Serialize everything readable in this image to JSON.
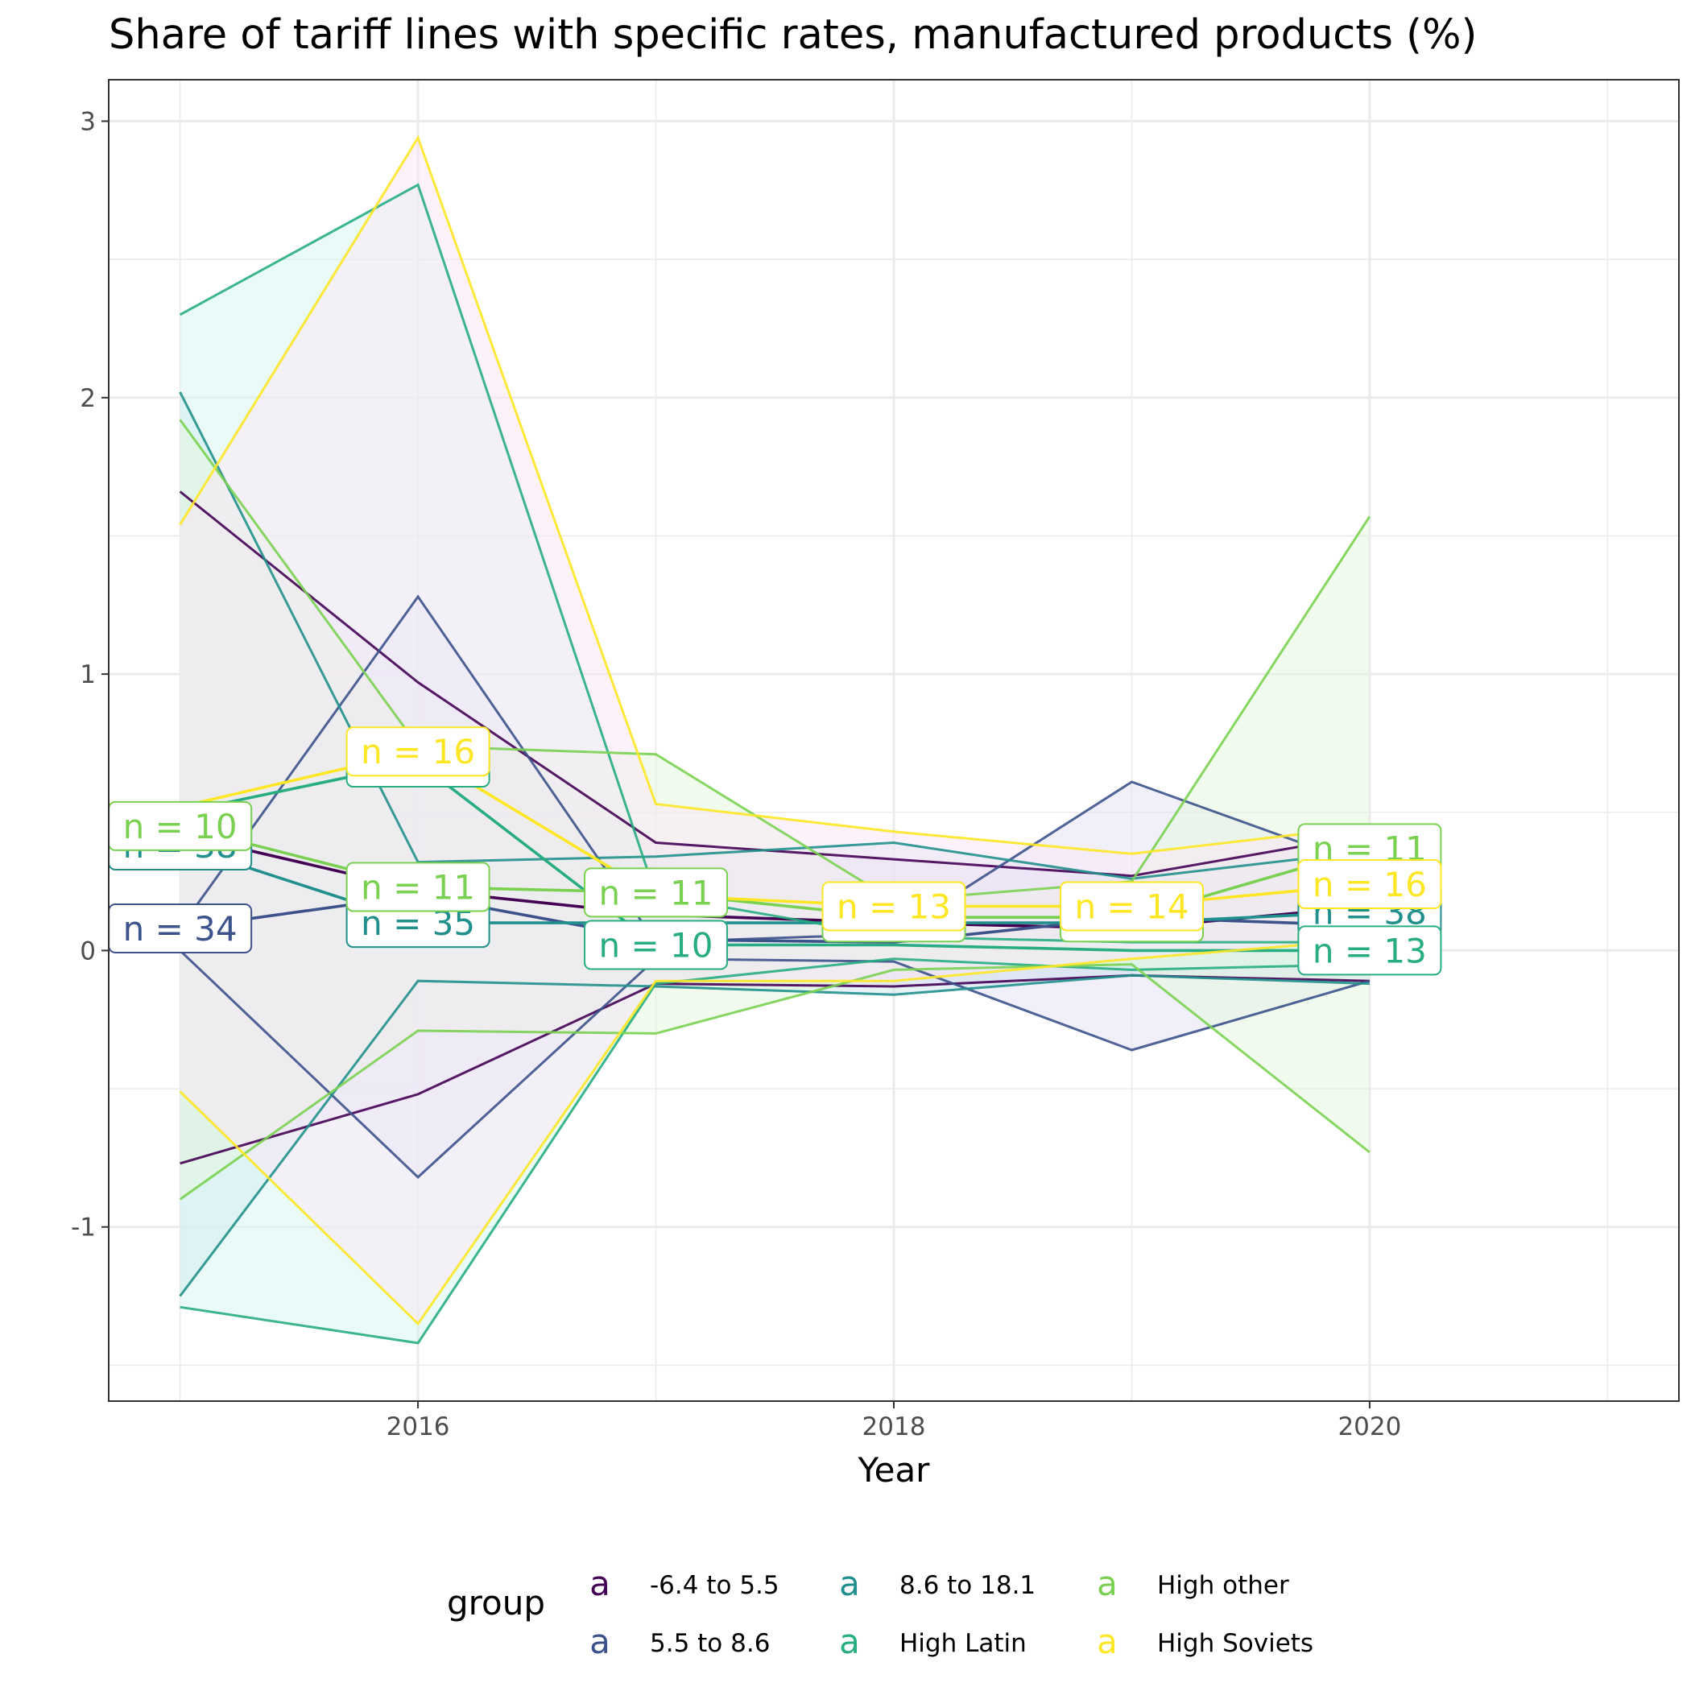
{
  "chart_data": {
    "type": "line",
    "title": "Share of tariff lines with specific rates, manufactured products (%)",
    "xlabel": "Year",
    "ylabel": "",
    "xlim": [
      2014.7,
      2021.3
    ],
    "ylim": [
      -1.63,
      3.15
    ],
    "x_ticks": [
      2016,
      2018,
      2020
    ],
    "y_ticks": [
      -1,
      0,
      1,
      2,
      3
    ],
    "grid": true,
    "legend": {
      "title": "group",
      "position": "bottom",
      "key_glyph": "a",
      "entries": [
        "-6.4 to 5.5",
        "5.5 to 8.6",
        "8.6 to 18.1",
        "High Latin",
        "High other",
        "High Soviets"
      ]
    },
    "series": [
      {
        "name": "-6.4 to 5.5",
        "color": "#440154",
        "fill": "#e9d6f5",
        "x": [
          2015,
          2016,
          2017,
          2018,
          2019,
          2020
        ],
        "mean": [
          0.42,
          0.22,
          0.13,
          0.1,
          0.08,
          0.16
        ],
        "upper": [
          1.66,
          0.97,
          0.39,
          0.33,
          0.27,
          0.42
        ],
        "lower": [
          -0.77,
          -0.52,
          -0.12,
          -0.13,
          -0.09,
          -0.11
        ],
        "n": [
          null,
          null,
          null,
          null,
          null,
          null
        ]
      },
      {
        "name": "5.5 to 8.6",
        "color": "#3b528b",
        "fill": "#e3e2f5",
        "x": [
          2015,
          2016,
          2017,
          2018,
          2019,
          2020
        ],
        "mean": [
          0.08,
          0.2,
          0.04,
          0.03,
          0.12,
          0.09
        ],
        "upper": [
          0.08,
          1.28,
          0.03,
          0.06,
          0.61,
          0.3
        ],
        "lower": [
          0.0,
          -0.82,
          -0.03,
          -0.04,
          -0.36,
          -0.11
        ],
        "n": [
          34,
          null,
          null,
          null,
          null,
          null
        ]
      },
      {
        "name": "8.6 to 18.1",
        "color": "#21908c",
        "fill": "#cfe6f0",
        "x": [
          2015,
          2016,
          2017,
          2018,
          2019,
          2020
        ],
        "mean": [
          0.38,
          0.1,
          0.1,
          0.1,
          0.1,
          0.14
        ],
        "upper": [
          2.02,
          0.32,
          0.34,
          0.39,
          0.26,
          0.36
        ],
        "lower": [
          -1.25,
          -0.11,
          -0.13,
          -0.16,
          -0.09,
          -0.12
        ],
        "n": [
          38,
          35,
          null,
          null,
          null,
          38
        ]
      },
      {
        "name": "High Latin",
        "color": "#27ad81",
        "fill": "#d6f5f2",
        "x": [
          2015,
          2016,
          2017,
          2018,
          2019,
          2020
        ],
        "mean": [
          0.5,
          0.68,
          0.02,
          0.02,
          0.0,
          0.0
        ],
        "upper": [
          2.3,
          2.77,
          0.2,
          0.05,
          0.03,
          0.03
        ],
        "lower": [
          -1.29,
          -1.42,
          -0.12,
          -0.03,
          -0.07,
          -0.05
        ],
        "n": [
          null,
          10,
          10,
          null,
          null,
          13
        ]
      },
      {
        "name": "High other",
        "color": "#7ad151",
        "fill": "#e4f7dc",
        "x": [
          2015,
          2016,
          2017,
          2018,
          2019,
          2020
        ],
        "mean": [
          0.45,
          0.23,
          0.21,
          0.12,
          0.12,
          0.37
        ],
        "upper": [
          1.92,
          0.74,
          0.71,
          0.18,
          0.25,
          1.57
        ],
        "lower": [
          -0.9,
          -0.29,
          -0.3,
          -0.07,
          -0.05,
          -0.73
        ],
        "n": [
          10,
          11,
          11,
          10,
          11,
          11
        ]
      },
      {
        "name": "High Soviets",
        "color": "#fde725",
        "fill": "#fbe6f7",
        "x": [
          2015,
          2016,
          2017,
          2018,
          2019,
          2020
        ],
        "mean": [
          0.52,
          0.72,
          0.2,
          0.16,
          0.16,
          0.24
        ],
        "upper": [
          1.54,
          2.94,
          0.53,
          0.43,
          0.35,
          0.45
        ],
        "lower": [
          -0.51,
          -1.35,
          -0.11,
          -0.11,
          -0.03,
          0.04
        ],
        "n": [
          null,
          16,
          null,
          13,
          14,
          16
        ]
      }
    ]
  }
}
